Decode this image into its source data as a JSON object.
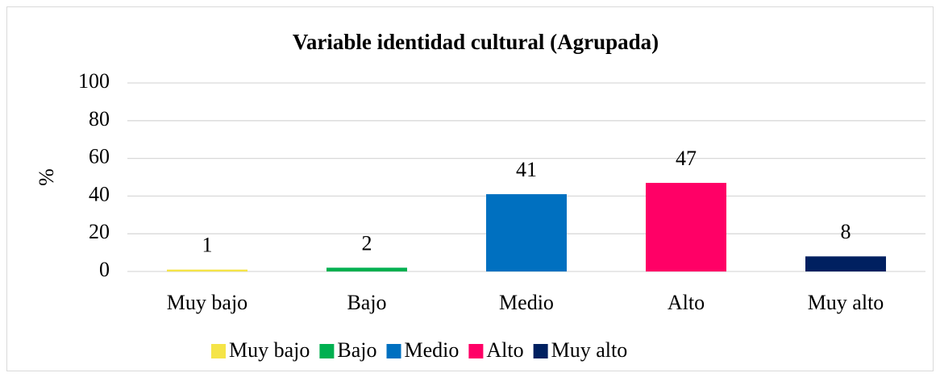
{
  "chart_data": {
    "type": "bar",
    "title": "Variable identidad cultural (Agrupada)",
    "ylabel": "%",
    "categories": [
      "Muy bajo",
      "Bajo",
      "Medio",
      "Alto",
      "Muy alto"
    ],
    "values": [
      1,
      2,
      41,
      47,
      8
    ],
    "colors": [
      "#f5e447",
      "#00b050",
      "#0070c0",
      "#ff0066",
      "#002060"
    ],
    "ylim": [
      0,
      100
    ],
    "yticks": [
      0,
      20,
      40,
      60,
      80,
      100
    ],
    "grid": true,
    "legend": "bottom"
  }
}
